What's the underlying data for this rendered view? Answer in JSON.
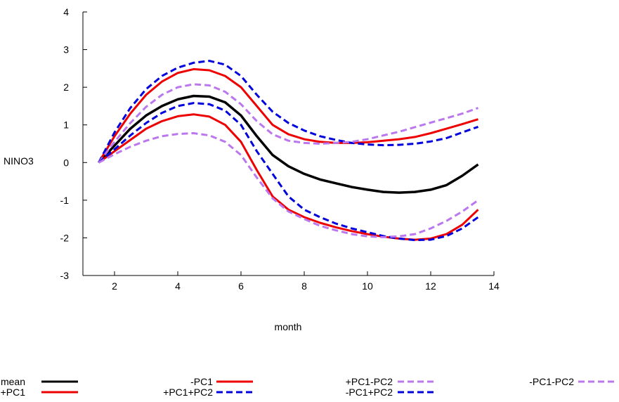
{
  "chart_data": {
    "type": "line",
    "title": "",
    "xlabel": "month",
    "ylabel": "NINO3",
    "xlim": [
      1,
      14
    ],
    "ylim": [
      -3,
      4
    ],
    "x_ticks": [
      2,
      4,
      6,
      8,
      10,
      12,
      14
    ],
    "y_ticks": [
      -3,
      -2,
      -1,
      0,
      1,
      2,
      3,
      4
    ],
    "grid": false,
    "legend_position": "bottom",
    "x": [
      1.5,
      2,
      2.5,
      3,
      3.5,
      4,
      4.5,
      5,
      5.5,
      6,
      6.5,
      7,
      7.5,
      8,
      8.5,
      9,
      9.5,
      10,
      10.5,
      11,
      11.5,
      12,
      12.5,
      13,
      13.5
    ],
    "series": [
      {
        "name": "mean",
        "color": "#000000",
        "dash": "solid",
        "values": [
          0,
          0.45,
          0.9,
          1.25,
          1.5,
          1.68,
          1.77,
          1.75,
          1.6,
          1.25,
          0.7,
          0.2,
          -0.1,
          -0.3,
          -0.45,
          -0.55,
          -0.65,
          -0.72,
          -0.78,
          -0.8,
          -0.78,
          -0.72,
          -0.6,
          -0.35,
          -0.05
        ]
      },
      {
        "name": "+PC1",
        "color": "#ee0000",
        "dash": "solid",
        "values": [
          0,
          0.7,
          1.3,
          1.8,
          2.15,
          2.38,
          2.48,
          2.45,
          2.3,
          2.0,
          1.5,
          1.0,
          0.75,
          0.62,
          0.55,
          0.52,
          0.52,
          0.54,
          0.58,
          0.62,
          0.68,
          0.78,
          0.9,
          1.02,
          1.15
        ]
      },
      {
        "name": "-PC1",
        "color": "#ee0000",
        "dash": "solid",
        "values": [
          0,
          0.3,
          0.6,
          0.9,
          1.1,
          1.23,
          1.28,
          1.22,
          1.0,
          0.55,
          -0.2,
          -0.9,
          -1.25,
          -1.45,
          -1.6,
          -1.72,
          -1.82,
          -1.9,
          -1.97,
          -2.02,
          -2.05,
          -2.02,
          -1.9,
          -1.65,
          -1.25
        ]
      },
      {
        "name": "+PC1+PC2",
        "color": "#0000dd",
        "dash": "dashed",
        "values": [
          0,
          0.8,
          1.45,
          1.95,
          2.3,
          2.52,
          2.65,
          2.7,
          2.6,
          2.3,
          1.8,
          1.35,
          1.05,
          0.85,
          0.7,
          0.6,
          0.52,
          0.48,
          0.46,
          0.47,
          0.5,
          0.56,
          0.65,
          0.8,
          0.95
        ]
      },
      {
        "name": "+PC1-PC2",
        "color": "#bb77ee",
        "dash": "dashed",
        "values": [
          0,
          0.55,
          1.05,
          1.48,
          1.8,
          2.0,
          2.08,
          2.05,
          1.88,
          1.55,
          1.1,
          0.75,
          0.58,
          0.52,
          0.5,
          0.52,
          0.55,
          0.62,
          0.72,
          0.82,
          0.94,
          1.06,
          1.18,
          1.3,
          1.45
        ]
      },
      {
        "name": "-PC1+PC2",
        "color": "#0000dd",
        "dash": "dashed",
        "values": [
          0,
          0.35,
          0.72,
          1.05,
          1.32,
          1.5,
          1.58,
          1.55,
          1.38,
          1.0,
          0.3,
          -0.3,
          -0.9,
          -1.25,
          -1.45,
          -1.62,
          -1.75,
          -1.85,
          -1.95,
          -2.02,
          -2.06,
          -2.05,
          -1.95,
          -1.75,
          -1.45
        ]
      },
      {
        "name": "-PC1-PC2",
        "color": "#bb77ee",
        "dash": "dashed",
        "values": [
          0,
          0.22,
          0.42,
          0.58,
          0.7,
          0.76,
          0.78,
          0.72,
          0.55,
          0.2,
          -0.4,
          -0.95,
          -1.3,
          -1.5,
          -1.68,
          -1.8,
          -1.9,
          -1.96,
          -1.98,
          -1.96,
          -1.9,
          -1.75,
          -1.55,
          -1.3,
          -1.0
        ]
      }
    ]
  }
}
